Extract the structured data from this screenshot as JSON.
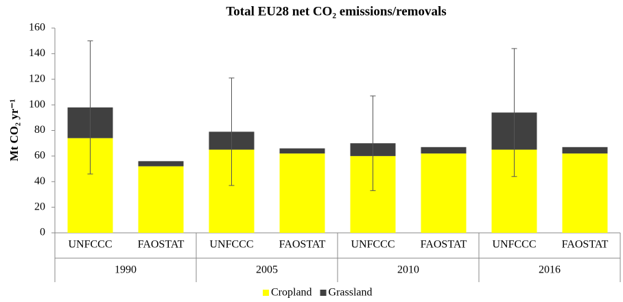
{
  "chart_data": {
    "type": "stacked_bar",
    "title": "Total EU28 net CO₂ emissions/removals",
    "y_label": "Mt CO₂ yr⁻¹",
    "groups": [
      "1990",
      "2005",
      "2010",
      "2016"
    ],
    "categories": [
      "UNFCCC",
      "FAOSTAT",
      "UNFCCC",
      "FAOSTAT",
      "UNFCCC",
      "FAOSTAT",
      "UNFCCC",
      "FAOSTAT"
    ],
    "series": [
      {
        "name": "Cropland",
        "color": "#ffff00",
        "values": [
          74,
          52,
          65,
          62,
          60,
          62,
          65,
          62
        ]
      },
      {
        "name": "Grassland",
        "color": "#404040",
        "values": [
          24,
          4,
          14,
          4,
          10,
          5,
          29,
          5
        ]
      }
    ],
    "errors": [
      52,
      null,
      42,
      null,
      37,
      null,
      50,
      null
    ],
    "ylim": [
      0,
      160
    ],
    "yticks": [
      0,
      20,
      40,
      60,
      80,
      100,
      120,
      140,
      160
    ],
    "legend": "bottom"
  }
}
